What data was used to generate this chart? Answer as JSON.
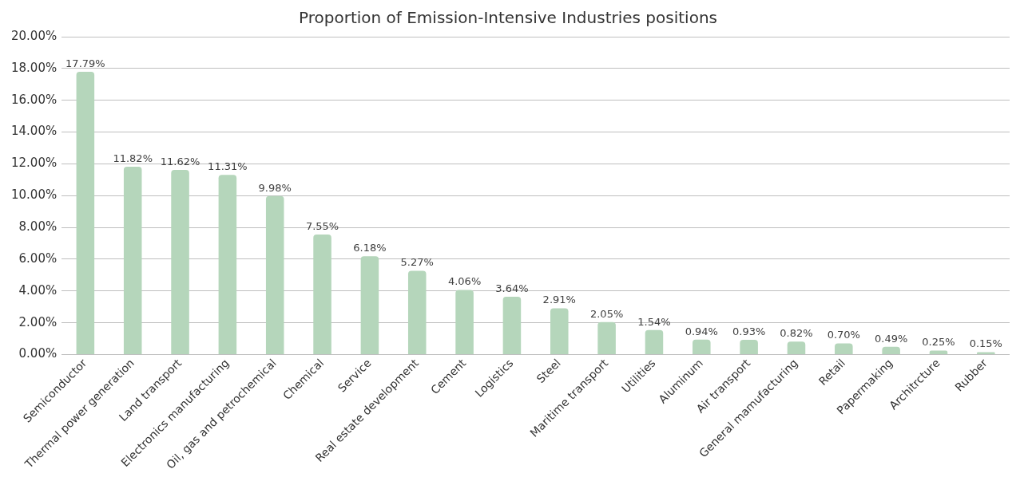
{
  "chart_data": {
    "type": "bar",
    "title": "Proportion of Emission-Intensive Industries positions",
    "categories": [
      "Semiconductor",
      "Thermal power generation",
      "Land transport",
      "Electronics manufacturing",
      "Oil, gas and petrochemical",
      "Chemical",
      "Service",
      "Real estate development",
      "Cement",
      "Logistics",
      "Steel",
      "Maritime transport",
      "Utilities",
      "Aluminum",
      "Air transport",
      "General mamufacturing",
      "Retail",
      "Papermaking",
      "Architrcture",
      "Rubber"
    ],
    "values": [
      17.79,
      11.82,
      11.62,
      11.31,
      9.98,
      7.55,
      6.18,
      5.27,
      4.06,
      3.64,
      2.91,
      2.05,
      1.54,
      0.94,
      0.93,
      0.82,
      0.7,
      0.49,
      0.25,
      0.15
    ],
    "value_labels": [
      "17.79%",
      "11.82%",
      "11.62%",
      "11.31%",
      "9.98%",
      "7.55%",
      "6.18%",
      "5.27%",
      "4.06%",
      "3.64%",
      "2.91%",
      "2.05%",
      "1.54%",
      "0.94%",
      "0.93%",
      "0.82%",
      "0.70%",
      "0.49%",
      "0.25%",
      "0.15%"
    ],
    "color": "#b5d6bb",
    "ylim": [
      0,
      20
    ],
    "yticks": [
      {
        "value": 0,
        "label": "0.00%"
      },
      {
        "value": 2,
        "label": "2.00%"
      },
      {
        "value": 4,
        "label": "4.00%"
      },
      {
        "value": 6,
        "label": "6.00%"
      },
      {
        "value": 8,
        "label": "8.00%"
      },
      {
        "value": 10,
        "label": "10.00%"
      },
      {
        "value": 12,
        "label": "12.00%"
      },
      {
        "value": 14,
        "label": "14.00%"
      },
      {
        "value": 16,
        "label": "16.00%"
      },
      {
        "value": 18,
        "label": "18.00%"
      },
      {
        "value": 20,
        "label": "20.00%"
      }
    ],
    "grid": "y",
    "legend": false
  }
}
